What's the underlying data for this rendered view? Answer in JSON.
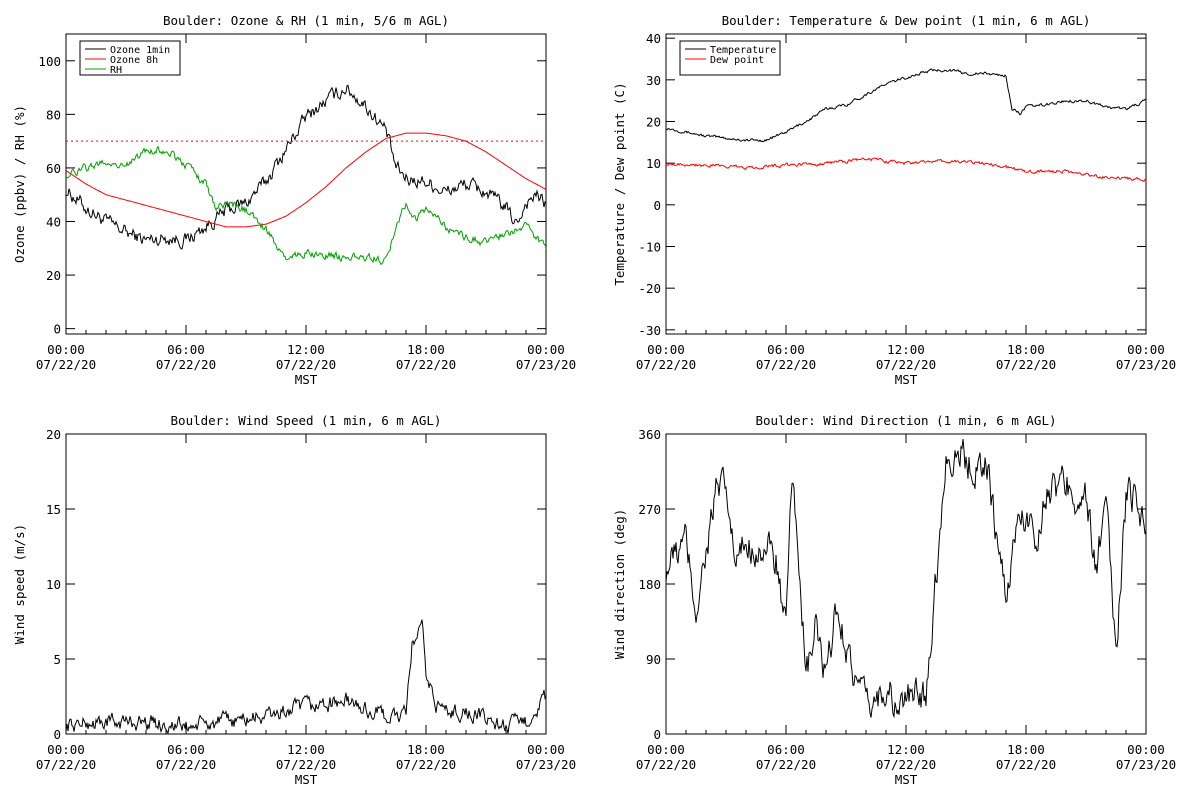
{
  "colors": {
    "black": "#000000",
    "red": "#ff0000",
    "green": "#00a000"
  },
  "chart_data": [
    {
      "type": "line",
      "title": "Boulder: Ozone & RH (1 min, 5/6 m AGL)",
      "xlabel": "MST",
      "ylabel": "Ozone (ppbv) / RH (%)",
      "x_ticks": [
        {
          "time": "00:00",
          "date": "07/22/20"
        },
        {
          "time": "06:00",
          "date": "07/22/20"
        },
        {
          "time": "12:00",
          "date": "07/22/20"
        },
        {
          "time": "18:00",
          "date": "07/22/20"
        },
        {
          "time": "00:00",
          "date": "07/23/20"
        }
      ],
      "xlim": [
        "2020-07-22 00:00",
        "2020-07-23 00:00"
      ],
      "ylim": [
        -2,
        110
      ],
      "y_ticks": [
        "0",
        "20",
        "40",
        "60",
        "80",
        "100"
      ],
      "legend_position": "top-left",
      "reference_line": {
        "y": 70,
        "style": "dotted",
        "color": "#ff0000"
      },
      "series": [
        {
          "name": "Ozone 1min",
          "color": "#000000",
          "noise": 2.2,
          "x_hours": [
            0,
            1,
            2,
            3,
            4,
            5,
            6,
            7,
            8,
            9,
            10,
            11,
            12,
            13,
            14,
            15,
            16,
            16.5,
            17,
            18,
            19,
            20,
            21,
            22,
            22.5,
            23,
            23.5,
            24
          ],
          "values": [
            52,
            45,
            40,
            36,
            33,
            34,
            33,
            38,
            44,
            47,
            55,
            67,
            79,
            85,
            90,
            83,
            74,
            60,
            56,
            55,
            51,
            54,
            51,
            45,
            39,
            47,
            50,
            46
          ]
        },
        {
          "name": "Ozone 8h",
          "color": "#ff0000",
          "noise": 0,
          "x_hours": [
            0,
            1,
            2,
            3,
            4,
            5,
            6,
            7,
            8,
            9,
            10,
            11,
            12,
            13,
            14,
            15,
            16,
            17,
            18,
            19,
            20,
            21,
            22,
            23,
            24
          ],
          "values": [
            59,
            54,
            50,
            48,
            46,
            44,
            42,
            40,
            38,
            38,
            39,
            42,
            47,
            53,
            60,
            66,
            71,
            73,
            73,
            72,
            70,
            66,
            61,
            56,
            52
          ]
        },
        {
          "name": "RH",
          "color": "#00a000",
          "noise": 1.2,
          "x_hours": [
            0,
            1,
            2,
            3,
            4,
            5,
            6,
            7,
            7.5,
            8,
            8.5,
            9,
            10,
            11,
            12,
            13,
            14,
            15,
            16,
            16.2,
            16.5,
            17,
            17.5,
            18,
            19,
            20,
            21,
            22,
            23,
            24
          ],
          "values": [
            57,
            60,
            62,
            61,
            66,
            67,
            61,
            54,
            45,
            47,
            46,
            44,
            37,
            26,
            28,
            28,
            26,
            27,
            25,
            29,
            38,
            47,
            41,
            45,
            38,
            34,
            32,
            36,
            38,
            30
          ]
        }
      ]
    },
    {
      "type": "line",
      "title": "Boulder: Temperature & Dew point (1 min, 6 m AGL)",
      "xlabel": "MST",
      "ylabel": "Temperature / Dew point (C)",
      "x_ticks": [
        {
          "time": "00:00",
          "date": "07/22/20"
        },
        {
          "time": "06:00",
          "date": "07/22/20"
        },
        {
          "time": "12:00",
          "date": "07/22/20"
        },
        {
          "time": "18:00",
          "date": "07/22/20"
        },
        {
          "time": "00:00",
          "date": "07/23/20"
        }
      ],
      "xlim": [
        "2020-07-22 00:00",
        "2020-07-23 00:00"
      ],
      "ylim": [
        -31,
        41
      ],
      "y_ticks": [
        "-30",
        "-20",
        "-10",
        "0",
        "10",
        "20",
        "30",
        "40"
      ],
      "legend_position": "top-left",
      "series": [
        {
          "name": "Temperature",
          "color": "#000000",
          "noise": 0.3,
          "x_hours": [
            0,
            1,
            2,
            3,
            4,
            5,
            6,
            7,
            8,
            9,
            10,
            11,
            12,
            13,
            14,
            15,
            16,
            17,
            17.3,
            17.7,
            18,
            19,
            20,
            21,
            22,
            23,
            24
          ],
          "values": [
            18.5,
            17.5,
            16.5,
            16,
            15.5,
            15.5,
            17.5,
            20,
            23,
            24,
            26.5,
            29,
            30.5,
            32,
            32.5,
            31.5,
            31.5,
            31,
            23,
            22,
            23.5,
            24,
            25,
            25,
            23.5,
            23,
            25
          ]
        },
        {
          "name": "Dew point",
          "color": "#ff0000",
          "noise": 0.35,
          "x_hours": [
            0,
            2,
            4,
            6,
            8,
            10,
            12,
            14,
            16,
            18,
            20,
            22,
            24
          ],
          "values": [
            10,
            9.5,
            9,
            9.5,
            10,
            11,
            10,
            10.5,
            10,
            8,
            8,
            6.5,
            6
          ]
        }
      ]
    },
    {
      "type": "line",
      "title": "Boulder: Wind Speed (1 min, 6 m AGL)",
      "xlabel": "MST",
      "ylabel": "Wind speed (m/s)",
      "x_ticks": [
        {
          "time": "00:00",
          "date": "07/22/20"
        },
        {
          "time": "06:00",
          "date": "07/22/20"
        },
        {
          "time": "12:00",
          "date": "07/22/20"
        },
        {
          "time": "18:00",
          "date": "07/22/20"
        },
        {
          "time": "00:00",
          "date": "07/23/20"
        }
      ],
      "xlim": [
        "2020-07-22 00:00",
        "2020-07-23 00:00"
      ],
      "ylim": [
        0,
        20
      ],
      "y_ticks": [
        "0",
        "5",
        "10",
        "15",
        "20"
      ],
      "series": [
        {
          "color": "#000000",
          "noise": 0.45,
          "x_hours": [
            0,
            2,
            4,
            6,
            8,
            10,
            12,
            13,
            14,
            15,
            16,
            17,
            17.3,
            17.8,
            18,
            18.5,
            19,
            20,
            21,
            22,
            23,
            24
          ],
          "values": [
            0.6,
            0.8,
            0.8,
            0.5,
            0.8,
            1.2,
            1.8,
            2,
            2.2,
            1.6,
            1.2,
            1.2,
            6,
            7,
            4,
            2,
            1.5,
            1.5,
            1,
            0.5,
            0.8,
            2.5
          ]
        }
      ]
    },
    {
      "type": "line",
      "title": "Boulder: Wind Direction (1 min, 6 m AGL)",
      "xlabel": "MST",
      "ylabel": "Wind direction (deg)",
      "x_ticks": [
        {
          "time": "00:00",
          "date": "07/22/20"
        },
        {
          "time": "06:00",
          "date": "07/22/20"
        },
        {
          "time": "12:00",
          "date": "07/22/20"
        },
        {
          "time": "18:00",
          "date": "07/22/20"
        },
        {
          "time": "00:00",
          "date": "07/23/20"
        }
      ],
      "xlim": [
        "2020-07-22 00:00",
        "2020-07-23 00:00"
      ],
      "ylim": [
        0,
        360
      ],
      "y_ticks": [
        "0",
        "90",
        "180",
        "270",
        "360"
      ],
      "series": [
        {
          "color": "#000000",
          "noise": 18,
          "x_hours": [
            0,
            1,
            1.5,
            2,
            2.5,
            3,
            3.5,
            4,
            5,
            5.5,
            6,
            6.3,
            6.7,
            7,
            7.5,
            8,
            8.5,
            9,
            9.5,
            10,
            10.5,
            11,
            11.5,
            12,
            13,
            14,
            14.5,
            15,
            15.5,
            16,
            17,
            17.5,
            18,
            18.5,
            19,
            20,
            21,
            21.5,
            22,
            22.5,
            23,
            23.5,
            24
          ],
          "values": [
            200,
            230,
            150,
            220,
            290,
            290,
            200,
            230,
            220,
            210,
            120,
            300,
            200,
            60,
            130,
            60,
            150,
            110,
            60,
            30,
            40,
            60,
            30,
            40,
            50,
            330,
            340,
            330,
            320,
            330,
            160,
            250,
            260,
            240,
            290,
            300,
            280,
            200,
            270,
            100,
            280,
            290,
            250
          ]
        }
      ]
    }
  ]
}
